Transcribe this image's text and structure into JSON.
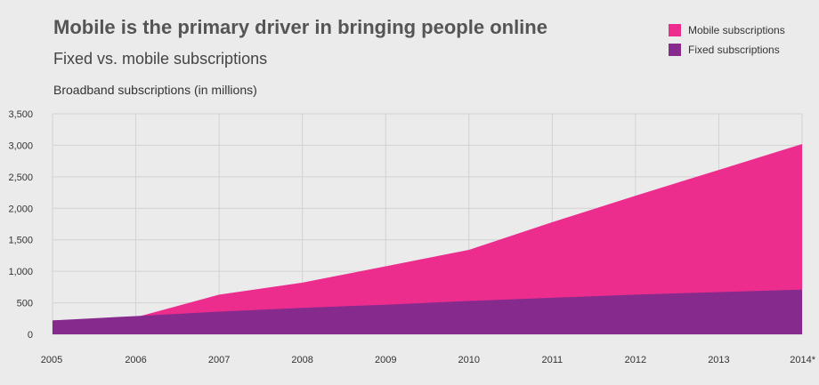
{
  "chart_data": {
    "type": "area",
    "title": "Mobile is the primary driver in bringing people online",
    "subtitle": "Fixed vs. mobile subscriptions",
    "ylabel": "Broadband subscriptions (in millions)",
    "xlabel": "",
    "categories": [
      "2005",
      "2006",
      "2007",
      "2008",
      "2009",
      "2010",
      "2011",
      "2012",
      "2013",
      "2014*"
    ],
    "ylim": [
      0,
      3500
    ],
    "yticks": [
      0,
      500,
      1000,
      1500,
      2000,
      2500,
      3000,
      3500
    ],
    "ytick_labels": [
      "0",
      "500",
      "1,000",
      "1,500",
      "2,000",
      "2,500",
      "3,000",
      "3,500"
    ],
    "grid": true,
    "legend_position": "top-right",
    "series": [
      {
        "name": "Mobile subscriptions",
        "color": "#ec2d8e",
        "values": [
          220,
          270,
          630,
          820,
          1080,
          1340,
          1780,
          2200,
          2610,
          3020
        ]
      },
      {
        "name": "Fixed subscriptions",
        "color": "#862a8e",
        "values": [
          220,
          290,
          360,
          420,
          470,
          530,
          580,
          630,
          670,
          710
        ]
      }
    ]
  }
}
